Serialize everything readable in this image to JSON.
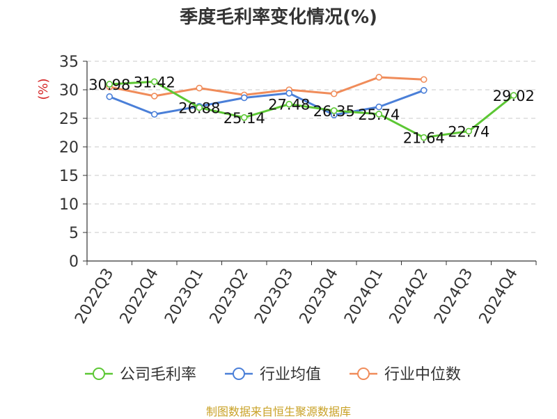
{
  "chart_data": {
    "type": "line",
    "title": "季度毛利率变化情况(%)",
    "ylabel": "(%)",
    "xlabel": "",
    "ylim": [
      0,
      35
    ],
    "yticks": [
      0,
      5,
      10,
      15,
      20,
      25,
      30,
      35
    ],
    "categories": [
      "2022Q3",
      "2022Q4",
      "2023Q1",
      "2023Q2",
      "2023Q3",
      "2023Q4",
      "2024Q1",
      "2024Q2",
      "2024Q3",
      "2024Q4"
    ],
    "grid": true,
    "legend_position": "bottom",
    "series": [
      {
        "name": "公司毛利率",
        "color": "#5cc734",
        "values": [
          30.98,
          31.42,
          26.88,
          25.14,
          27.48,
          26.35,
          25.74,
          21.64,
          22.74,
          29.02
        ],
        "labels": [
          "30.98",
          "31.42",
          "26.88",
          "25.14",
          "27.48",
          "26.35",
          "25.74",
          "21.64",
          "22.74",
          "29.02"
        ]
      },
      {
        "name": "行业均值",
        "color": "#4a7fd8",
        "values": [
          28.8,
          25.7,
          27.1,
          28.6,
          29.4,
          25.6,
          27.0,
          29.9,
          null,
          null
        ]
      },
      {
        "name": "行业中位数",
        "color": "#f08c5a",
        "values": [
          30.5,
          28.9,
          30.3,
          29.1,
          30.0,
          29.3,
          32.2,
          31.8,
          null,
          null
        ]
      }
    ]
  },
  "footer": {
    "source": "制图数据来自恒生聚源数据库"
  }
}
